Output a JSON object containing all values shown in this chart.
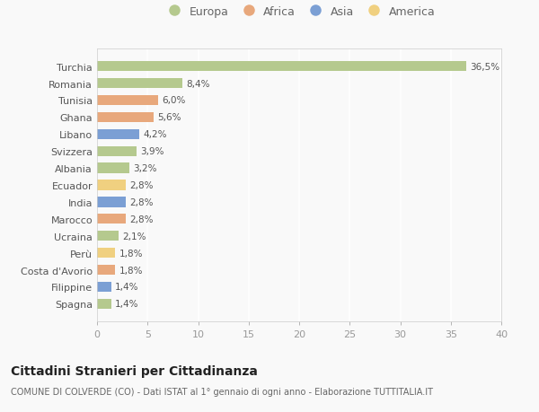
{
  "countries": [
    "Turchia",
    "Romania",
    "Tunisia",
    "Ghana",
    "Libano",
    "Svizzera",
    "Albania",
    "Ecuador",
    "India",
    "Marocco",
    "Ucraina",
    "Perù",
    "Costa d'Avorio",
    "Filippine",
    "Spagna"
  ],
  "values": [
    36.5,
    8.4,
    6.0,
    5.6,
    4.2,
    3.9,
    3.2,
    2.8,
    2.8,
    2.8,
    2.1,
    1.8,
    1.8,
    1.4,
    1.4
  ],
  "labels": [
    "36,5%",
    "8,4%",
    "6,0%",
    "5,6%",
    "4,2%",
    "3,9%",
    "3,2%",
    "2,8%",
    "2,8%",
    "2,8%",
    "2,1%",
    "1,8%",
    "1,8%",
    "1,4%",
    "1,4%"
  ],
  "continents": [
    "Europa",
    "Europa",
    "Africa",
    "Africa",
    "Asia",
    "Europa",
    "Europa",
    "America",
    "Asia",
    "Africa",
    "Europa",
    "America",
    "Africa",
    "Asia",
    "Europa"
  ],
  "continent_colors": {
    "Europa": "#b5c98e",
    "Africa": "#e8a87c",
    "Asia": "#7b9fd4",
    "America": "#f0d080"
  },
  "legend_order": [
    "Europa",
    "Africa",
    "Asia",
    "America"
  ],
  "legend_colors": [
    "#b5c98e",
    "#e8a87c",
    "#7b9fd4",
    "#f0d080"
  ],
  "title": "Cittadini Stranieri per Cittadinanza",
  "subtitle": "COMUNE DI COLVERDE (CO) - Dati ISTAT al 1° gennaio di ogni anno - Elaborazione TUTTITALIA.IT",
  "xlim": [
    0,
    40
  ],
  "xticks": [
    0,
    5,
    10,
    15,
    20,
    25,
    30,
    35,
    40
  ],
  "background_color": "#f9f9f9",
  "grid_color": "#ffffff",
  "bar_height": 0.6
}
